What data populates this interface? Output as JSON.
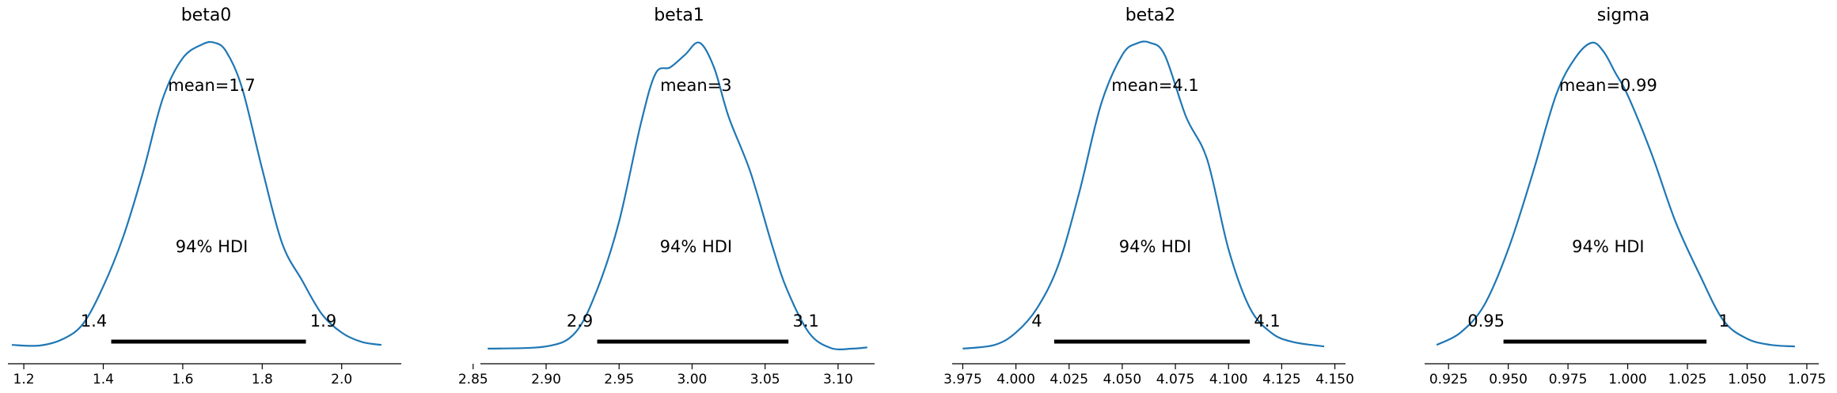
{
  "chart_data": [
    {
      "type": "line",
      "title": "beta0",
      "xlim": [
        1.16,
        2.15
      ],
      "xticks": [
        1.2,
        1.4,
        1.6,
        1.8,
        2.0
      ],
      "xtick_labels": [
        "1.2",
        "1.4",
        "1.6",
        "1.8",
        "2.0"
      ],
      "mean_label": "mean=1.7",
      "hdi_label": "94% HDI",
      "hdi": [
        1.42,
        1.91
      ],
      "hdi_low_label": "1.4",
      "hdi_high_label": "1.9",
      "kde": {
        "x": [
          1.17,
          1.24,
          1.3,
          1.35,
          1.4,
          1.45,
          1.5,
          1.55,
          1.6,
          1.65,
          1.68,
          1.71,
          1.75,
          1.8,
          1.85,
          1.9,
          1.95,
          2.0,
          2.05,
          2.1
        ],
        "y": [
          0.02,
          0.018,
          0.04,
          0.09,
          0.21,
          0.37,
          0.58,
          0.82,
          0.95,
          0.995,
          1.0,
          0.97,
          0.85,
          0.59,
          0.35,
          0.23,
          0.12,
          0.06,
          0.03,
          0.02
        ]
      }
    },
    {
      "type": "line",
      "title": "beta1",
      "xlim": [
        2.855,
        3.125
      ],
      "xticks": [
        2.85,
        2.9,
        2.95,
        3.0,
        3.05,
        3.1
      ],
      "xtick_labels": [
        "2.85",
        "2.90",
        "2.95",
        "3.00",
        "3.05",
        "3.10"
      ],
      "mean_label": "mean=3",
      "hdi_label": "94% HDI",
      "hdi": [
        2.935,
        3.066
      ],
      "hdi_low_label": "2.9",
      "hdi_high_label": "3.1",
      "kde": {
        "x": [
          2.86,
          2.9,
          2.92,
          2.935,
          2.95,
          2.965,
          2.975,
          2.985,
          2.995,
          3.005,
          3.015,
          3.025,
          3.04,
          3.055,
          3.065,
          3.08,
          3.095,
          3.11,
          3.12
        ],
        "y": [
          0.008,
          0.015,
          0.06,
          0.2,
          0.42,
          0.74,
          0.9,
          0.92,
          0.96,
          1.0,
          0.92,
          0.76,
          0.58,
          0.34,
          0.2,
          0.06,
          0.01,
          0.008,
          0.012
        ]
      }
    },
    {
      "type": "line",
      "title": "beta2",
      "xlim": [
        3.97,
        4.155
      ],
      "xticks": [
        3.975,
        4.0,
        4.025,
        4.05,
        4.075,
        4.1,
        4.125,
        4.15
      ],
      "xtick_labels": [
        "3.975",
        "4.000",
        "4.025",
        "4.050",
        "4.075",
        "4.100",
        "4.125",
        "4.150"
      ],
      "mean_label": "mean=4.1",
      "hdi_label": "94% HDI",
      "hdi": [
        4.018,
        4.11
      ],
      "hdi_low_label": "4",
      "hdi_high_label": "4.1",
      "kde": {
        "x": [
          3.975,
          3.99,
          4.0,
          4.01,
          4.02,
          4.03,
          4.04,
          4.05,
          4.057,
          4.063,
          4.07,
          4.08,
          4.09,
          4.1,
          4.11,
          4.12,
          4.13,
          4.145
        ],
        "y": [
          0.008,
          0.02,
          0.06,
          0.14,
          0.28,
          0.52,
          0.8,
          0.96,
          0.998,
          1.0,
          0.96,
          0.76,
          0.62,
          0.33,
          0.14,
          0.06,
          0.03,
          0.015
        ]
      }
    },
    {
      "type": "line",
      "title": "sigma",
      "xlim": [
        0.915,
        1.08
      ],
      "xticks": [
        0.925,
        0.95,
        0.975,
        1.0,
        1.025,
        1.05,
        1.075
      ],
      "xtick_labels": [
        "0.925",
        "0.950",
        "0.975",
        "1.000",
        "1.025",
        "1.050",
        "1.075"
      ],
      "mean_label": "mean=0.99",
      "hdi_label": "94% HDI",
      "hdi": [
        0.948,
        1.033
      ],
      "hdi_low_label": "0.95",
      "hdi_high_label": "1",
      "kde": {
        "x": [
          0.92,
          0.93,
          0.94,
          0.95,
          0.96,
          0.97,
          0.978,
          0.985,
          0.99,
          0.995,
          1.0,
          1.01,
          1.02,
          1.03,
          1.04,
          1.05,
          1.06,
          1.07
        ],
        "y": [
          0.02,
          0.06,
          0.15,
          0.33,
          0.57,
          0.83,
          0.95,
          1.0,
          0.97,
          0.9,
          0.83,
          0.64,
          0.42,
          0.25,
          0.1,
          0.04,
          0.02,
          0.015
        ]
      }
    }
  ]
}
